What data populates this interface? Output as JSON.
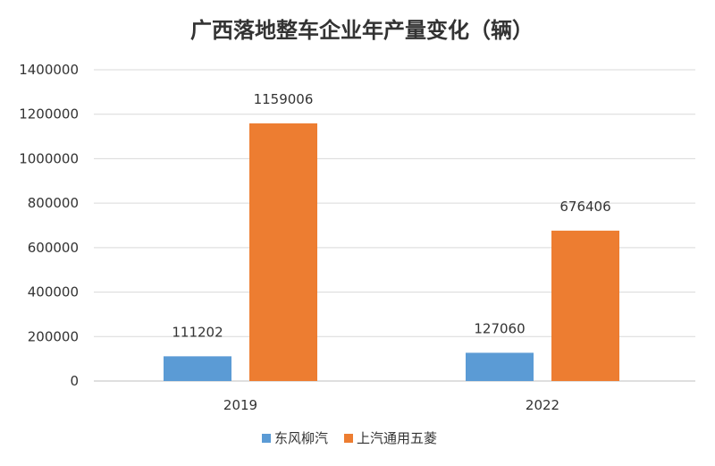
{
  "chart_data": {
    "type": "bar",
    "title": "广西落地整车企业年产量变化（辆）",
    "categories": [
      "2019",
      "2022"
    ],
    "series": [
      {
        "name": "东风柳汽",
        "values": [
          111202,
          127060
        ],
        "color": "#5B9BD5"
      },
      {
        "name": "上汽通用五菱",
        "values": [
          1159006,
          676406
        ],
        "color": "#ED7D31"
      }
    ],
    "yticks": [
      "0",
      "200000",
      "400000",
      "600000",
      "800000",
      "1000000",
      "1200000",
      "1400000"
    ],
    "ylim": [
      0,
      1400000
    ],
    "grid": true,
    "legend": "bottom"
  }
}
